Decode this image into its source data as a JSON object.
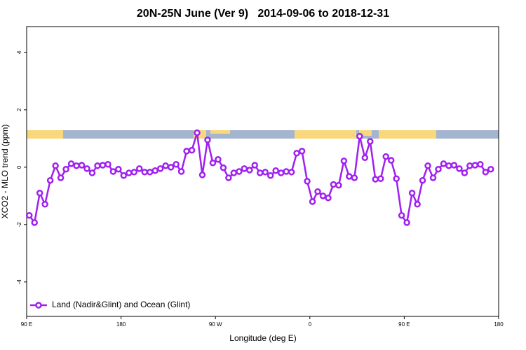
{
  "chart_data": {
    "type": "line",
    "title": "20N-25N June (Ver 9)   2014-09-06 to 2018-12-31",
    "xlabel": "Longitude (deg E)",
    "ylabel": "XCO2 - MLO trend (ppm)",
    "xlim": [
      90,
      540
    ],
    "ylim": [
      -5.2,
      4.9
    ],
    "xticks": [
      {
        "value": 90,
        "label": "90 E"
      },
      {
        "value": 180,
        "label": "180"
      },
      {
        "value": 270,
        "label": "90 W"
      },
      {
        "value": 360,
        "label": "0"
      },
      {
        "value": 450,
        "label": "90 E"
      },
      {
        "value": 540,
        "label": "180"
      }
    ],
    "yticks": [
      4,
      2,
      0,
      -2,
      -4
    ],
    "legend": "bottom-left",
    "x": [
      92.5,
      97.5,
      102.5,
      107.5,
      112.5,
      117.5,
      122.5,
      127.5,
      132.5,
      137.5,
      142.5,
      147.5,
      152.5,
      157.5,
      162.5,
      167.5,
      172.5,
      177.5,
      182.5,
      187.5,
      192.5,
      197.5,
      202.5,
      207.5,
      212.5,
      217.5,
      222.5,
      227.5,
      232.5,
      237.5,
      242.5,
      247.5,
      252.5,
      257.5,
      262.5,
      267.5,
      272.5,
      277.5,
      282.5,
      287.5,
      292.5,
      297.5,
      302.5,
      307.5,
      312.5,
      317.5,
      322.5,
      327.5,
      332.5,
      337.5,
      342.5,
      347.5,
      352.5,
      357.5,
      362.5,
      367.5,
      372.5,
      377.5,
      382.5,
      387.5,
      392.5,
      397.5,
      402.5,
      407.5,
      412.5,
      417.5,
      422.5,
      427.5,
      432.5,
      437.5,
      442.5,
      447.5,
      452.5,
      457.5,
      462.5,
      467.5,
      472.5,
      477.5,
      482.5,
      487.5,
      492.5,
      497.5,
      502.5,
      507.5,
      512.5,
      517.5,
      522.5,
      527.5,
      532.5
    ],
    "series": [
      {
        "name": "Land (Nadir&Glint) and Ocean (Glint)",
        "color": "#a020f0",
        "values": [
          -1.68,
          -1.93,
          -0.9,
          -1.29,
          -0.46,
          0.05,
          -0.37,
          -0.07,
          0.12,
          0.05,
          0.07,
          -0.05,
          -0.2,
          0.05,
          0.07,
          0.1,
          -0.15,
          -0.07,
          -0.29,
          -0.2,
          -0.17,
          -0.05,
          -0.17,
          -0.17,
          -0.12,
          -0.05,
          0.05,
          0,
          0.1,
          -0.15,
          0.56,
          0.59,
          1.2,
          -0.27,
          0.95,
          0.15,
          0.27,
          -0.02,
          -0.37,
          -0.2,
          -0.15,
          -0.05,
          -0.1,
          0.07,
          -0.2,
          -0.17,
          -0.29,
          -0.12,
          -0.2,
          -0.15,
          -0.17,
          0.49,
          0.56,
          -0.49,
          -1.2,
          -0.85,
          -1.0,
          -1.07,
          -0.6,
          -0.63,
          0.22,
          -0.32,
          -0.37,
          1.08,
          0.33,
          0.9,
          -0.42,
          -0.4,
          0.37,
          0.24,
          -0.4,
          -1.68,
          -1.93,
          -0.9,
          -1.29,
          -0.46,
          0.05,
          -0.37,
          -0.07,
          0.12,
          0.05,
          0.07,
          -0.05,
          -0.2,
          0.05,
          0.07,
          0.1,
          -0.17,
          -0.07
        ]
      }
    ]
  }
}
